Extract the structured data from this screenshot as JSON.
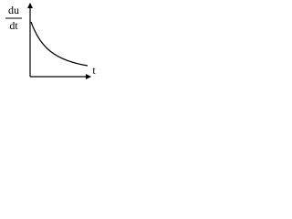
{
  "axes": {
    "y_label": {
      "numerator": "du",
      "denominator": "dt"
    },
    "x_label": "t"
  }
}
